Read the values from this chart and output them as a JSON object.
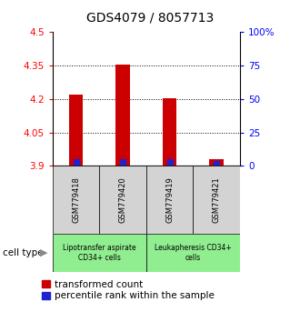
{
  "title": "GDS4079 / 8057713",
  "samples": [
    "GSM779418",
    "GSM779420",
    "GSM779419",
    "GSM779421"
  ],
  "ylim_left": [
    3.9,
    4.5
  ],
  "yticks_left": [
    3.9,
    4.05,
    4.2,
    4.35,
    4.5
  ],
  "ytick_labels_left": [
    "3.9",
    "4.05",
    "4.2",
    "4.35",
    "4.5"
  ],
  "yticks_right_vals": [
    0,
    25,
    50,
    75,
    100
  ],
  "ytick_labels_right": [
    "0",
    "25",
    "50",
    "75",
    "100%"
  ],
  "transformed_counts": [
    4.22,
    4.355,
    4.205,
    3.93
  ],
  "base_value": 3.9,
  "percentile_ranks": [
    3.0,
    3.0,
    3.0,
    1.5
  ],
  "cell_types": [
    "Lipotransfer aspirate\nCD34+ cells",
    "Leukapheresis CD34+\ncells"
  ],
  "cell_type_colors": [
    "#90EE90",
    "#90EE90"
  ],
  "sample_label_bg": "#d3d3d3",
  "bar_color_red": "#cc0000",
  "bar_color_blue": "#2222cc",
  "bar_width": 0.3,
  "title_fontsize": 10,
  "tick_fontsize": 7.5,
  "label_fontsize": 7,
  "legend_fontsize": 7.5
}
